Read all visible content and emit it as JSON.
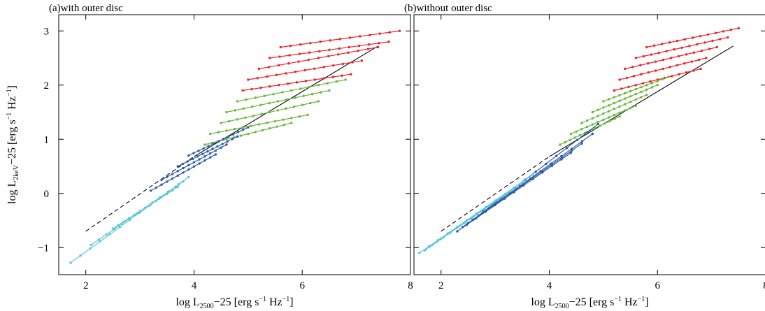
{
  "chart_data": [
    {
      "type": "line",
      "title": "(a)with outer disc",
      "xlabel": "log L_2500−25 [erg s⁻¹ Hz⁻¹]",
      "ylabel": "log L_2keV−25 [erg s⁻¹ Hz⁻¹]",
      "xlim": [
        1.5,
        8.0
      ],
      "ylim": [
        -1.5,
        3.3
      ],
      "xticks": [
        "2",
        "4",
        "6",
        "8"
      ],
      "yticks": [
        "−1",
        "0",
        "1",
        "2",
        "3"
      ],
      "reference_line": {
        "style": "dashed-then-solid",
        "x": [
          2.0,
          4.0,
          7.4
        ],
        "y": [
          -0.7,
          0.68,
          2.72
        ],
        "solid_from_x": 4.0
      },
      "series": [
        {
          "color": "#e8262b",
          "x": [
            5.6,
            7.8
          ],
          "y": [
            2.7,
            3.0
          ]
        },
        {
          "color": "#e8262b",
          "x": [
            5.4,
            7.6
          ],
          "y": [
            2.5,
            2.8
          ]
        },
        {
          "color": "#e8262b",
          "x": [
            5.2,
            7.4
          ],
          "y": [
            2.3,
            2.7
          ]
        },
        {
          "color": "#e8262b",
          "x": [
            5.0,
            7.1
          ],
          "y": [
            2.1,
            2.45
          ]
        },
        {
          "color": "#e8262b",
          "x": [
            4.9,
            6.9
          ],
          "y": [
            1.9,
            2.2
          ]
        },
        {
          "color": "#6cb83c",
          "x": [
            4.8,
            6.8
          ],
          "y": [
            1.7,
            2.1
          ]
        },
        {
          "color": "#6cb83c",
          "x": [
            4.6,
            6.5
          ],
          "y": [
            1.5,
            1.9
          ]
        },
        {
          "color": "#6cb83c",
          "x": [
            4.5,
            6.3
          ],
          "y": [
            1.3,
            1.7
          ]
        },
        {
          "color": "#6cb83c",
          "x": [
            4.3,
            6.1
          ],
          "y": [
            1.1,
            1.45
          ]
        },
        {
          "color": "#6cb83c",
          "x": [
            4.2,
            5.8
          ],
          "y": [
            0.9,
            1.3
          ]
        },
        {
          "color": "#2e5ca8",
          "x": [
            3.9,
            5.0
          ],
          "y": [
            0.7,
            1.22
          ]
        },
        {
          "color": "#2e5ca8",
          "x": [
            3.7,
            4.8
          ],
          "y": [
            0.5,
            1.05
          ]
        },
        {
          "color": "#2e5ca8",
          "x": [
            3.4,
            4.6
          ],
          "y": [
            0.25,
            0.9
          ]
        },
        {
          "color": "#2e5ca8",
          "x": [
            3.2,
            4.4
          ],
          "y": [
            0.05,
            0.72
          ]
        },
        {
          "color": "#5cc7d6",
          "x": [
            1.72,
            3.9
          ],
          "y": [
            -1.28,
            0.3
          ]
        },
        {
          "color": "#5cc7d6",
          "x": [
            2.1,
            3.8
          ],
          "y": [
            -0.95,
            0.22
          ]
        },
        {
          "color": "#5cc7d6",
          "x": [
            2.5,
            3.7
          ],
          "y": [
            -0.65,
            0.12
          ]
        }
      ]
    },
    {
      "type": "line",
      "title": "(b)without outer disc",
      "xlabel": "log L_2500−25 [erg s⁻¹ Hz⁻¹]",
      "ylabel": "",
      "xlim": [
        1.5,
        8.0
      ],
      "ylim": [
        -1.5,
        3.3
      ],
      "xticks": [
        "2",
        "4",
        "6",
        "8"
      ],
      "yticks": [],
      "reference_line": {
        "style": "dashed-then-solid",
        "x": [
          2.0,
          4.0,
          7.4
        ],
        "y": [
          -0.7,
          0.68,
          2.72
        ],
        "solid_from_x": 4.0
      },
      "series": [
        {
          "color": "#e8262b",
          "x": [
            5.8,
            7.5
          ],
          "y": [
            2.7,
            3.05
          ]
        },
        {
          "color": "#e8262b",
          "x": [
            5.6,
            7.3
          ],
          "y": [
            2.5,
            2.88
          ]
        },
        {
          "color": "#e8262b",
          "x": [
            5.4,
            7.1
          ],
          "y": [
            2.3,
            2.7
          ]
        },
        {
          "color": "#e8262b",
          "x": [
            5.3,
            6.9
          ],
          "y": [
            2.1,
            2.5
          ]
        },
        {
          "color": "#e8262b",
          "x": [
            5.2,
            6.8
          ],
          "y": [
            1.9,
            2.3
          ]
        },
        {
          "color": "#6cb83c",
          "x": [
            5.0,
            6.2
          ],
          "y": [
            1.7,
            2.15
          ]
        },
        {
          "color": "#6cb83c",
          "x": [
            4.8,
            6.0
          ],
          "y": [
            1.5,
            2.0
          ]
        },
        {
          "color": "#6cb83c",
          "x": [
            4.6,
            5.8
          ],
          "y": [
            1.3,
            1.82
          ]
        },
        {
          "color": "#6cb83c",
          "x": [
            4.4,
            5.6
          ],
          "y": [
            1.1,
            1.62
          ]
        },
        {
          "color": "#6cb83c",
          "x": [
            4.2,
            5.3
          ],
          "y": [
            0.9,
            1.42
          ]
        },
        {
          "color": "#2e5ca8",
          "x": [
            2.6,
            4.9
          ],
          "y": [
            -0.48,
            1.28
          ]
        },
        {
          "color": "#2e5ca8",
          "x": [
            2.5,
            4.8
          ],
          "y": [
            -0.55,
            1.1
          ]
        },
        {
          "color": "#2e5ca8",
          "x": [
            2.4,
            4.6
          ],
          "y": [
            -0.62,
            0.92
          ]
        },
        {
          "color": "#2e5ca8",
          "x": [
            2.3,
            4.4
          ],
          "y": [
            -0.7,
            0.75
          ]
        },
        {
          "color": "#5cc7d6",
          "x": [
            1.6,
            3.7
          ],
          "y": [
            -1.1,
            0.35
          ]
        },
        {
          "color": "#5cc7d6",
          "x": [
            1.7,
            3.5
          ],
          "y": [
            -1.05,
            0.2
          ]
        },
        {
          "color": "#5cc7d6",
          "x": [
            1.8,
            3.3
          ],
          "y": [
            -0.98,
            0.05
          ]
        }
      ]
    }
  ]
}
